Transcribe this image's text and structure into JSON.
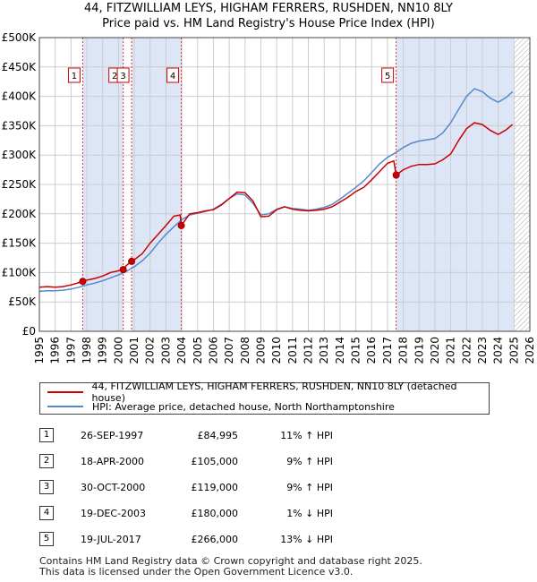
{
  "title_line1": "44, FITZWILLIAM LEYS, HIGHAM FERRERS, RUSHDEN, NN10 8LY",
  "title_line2": "Price paid vs. HM Land Registry's House Price Index (HPI)",
  "chart_data": {
    "type": "line",
    "title": "44, FITZWILLIAM LEYS, HIGHAM FERRERS, RUSHDEN, NN10 8LY — Price paid vs. HM Land Registry's House Price Index (HPI)",
    "xlabel": "",
    "ylabel": "",
    "xlim": [
      1995,
      2026
    ],
    "ylim": [
      0,
      500000
    ],
    "x_ticks": [
      1995,
      1996,
      1997,
      1998,
      1999,
      2000,
      2001,
      2002,
      2003,
      2004,
      2005,
      2006,
      2007,
      2008,
      2009,
      2010,
      2011,
      2012,
      2013,
      2014,
      2015,
      2016,
      2017,
      2018,
      2019,
      2020,
      2021,
      2022,
      2023,
      2024,
      2025,
      2026
    ],
    "y_ticks": [
      {
        "value": 0,
        "label": "£0"
      },
      {
        "value": 50000,
        "label": "£50K"
      },
      {
        "value": 100000,
        "label": "£100K"
      },
      {
        "value": 150000,
        "label": "£150K"
      },
      {
        "value": 200000,
        "label": "£200K"
      },
      {
        "value": 250000,
        "label": "£250K"
      },
      {
        "value": 300000,
        "label": "£300K"
      },
      {
        "value": 350000,
        "label": "£350K"
      },
      {
        "value": 400000,
        "label": "£400K"
      },
      {
        "value": 450000,
        "label": "£450K"
      },
      {
        "value": 500000,
        "label": "£500K"
      }
    ],
    "grid": true,
    "shaded_ranges": [
      [
        1997.74,
        2000.3
      ],
      [
        2000.83,
        2003.97
      ],
      [
        2017.55,
        2025.0
      ]
    ],
    "hatched_range": [
      2025.0,
      2026.0
    ],
    "series": [
      {
        "name": "44, FITZWILLIAM LEYS, HIGHAM FERRERS, RUSHDEN, NN10 8LY (detached house)",
        "color": "#cc0000",
        "points": [
          [
            1995.0,
            75000
          ],
          [
            1995.5,
            76000
          ],
          [
            1996.0,
            75000
          ],
          [
            1996.5,
            76000
          ],
          [
            1997.0,
            79000
          ],
          [
            1997.5,
            83000
          ],
          [
            1997.74,
            84995
          ],
          [
            1998.0,
            87000
          ],
          [
            1998.5,
            90000
          ],
          [
            1999.0,
            94000
          ],
          [
            1999.5,
            100000
          ],
          [
            2000.0,
            103000
          ],
          [
            2000.3,
            105000
          ],
          [
            2000.5,
            112000
          ],
          [
            2000.83,
            119000
          ],
          [
            2001.0,
            122000
          ],
          [
            2001.5,
            132000
          ],
          [
            2002.0,
            150000
          ],
          [
            2002.5,
            165000
          ],
          [
            2003.0,
            180000
          ],
          [
            2003.5,
            196000
          ],
          [
            2003.9,
            198000
          ],
          [
            2003.97,
            180000
          ],
          [
            2004.5,
            200000
          ],
          [
            2005.0,
            202000
          ],
          [
            2005.5,
            205000
          ],
          [
            2006.0,
            207000
          ],
          [
            2006.5,
            215000
          ],
          [
            2007.0,
            226000
          ],
          [
            2007.5,
            237000
          ],
          [
            2008.0,
            236000
          ],
          [
            2008.5,
            222000
          ],
          [
            2009.0,
            195000
          ],
          [
            2009.5,
            196000
          ],
          [
            2010.0,
            207000
          ],
          [
            2010.5,
            212000
          ],
          [
            2011.0,
            208000
          ],
          [
            2011.5,
            206000
          ],
          [
            2012.0,
            205000
          ],
          [
            2012.5,
            206000
          ],
          [
            2013.0,
            208000
          ],
          [
            2013.5,
            212000
          ],
          [
            2014.0,
            220000
          ],
          [
            2014.5,
            228000
          ],
          [
            2015.0,
            238000
          ],
          [
            2015.5,
            245000
          ],
          [
            2016.0,
            258000
          ],
          [
            2016.5,
            272000
          ],
          [
            2017.0,
            286000
          ],
          [
            2017.4,
            290000
          ],
          [
            2017.55,
            266000
          ],
          [
            2018.0,
            275000
          ],
          [
            2018.5,
            281000
          ],
          [
            2019.0,
            284000
          ],
          [
            2019.5,
            284000
          ],
          [
            2020.0,
            285000
          ],
          [
            2020.5,
            292000
          ],
          [
            2021.0,
            302000
          ],
          [
            2021.5,
            325000
          ],
          [
            2022.0,
            345000
          ],
          [
            2022.5,
            355000
          ],
          [
            2023.0,
            352000
          ],
          [
            2023.5,
            342000
          ],
          [
            2024.0,
            335000
          ],
          [
            2024.5,
            343000
          ],
          [
            2024.9,
            352000
          ]
        ]
      },
      {
        "name": "HPI: Average price, detached house, North Northamptonshire",
        "color": "#5588cc",
        "points": [
          [
            1995.0,
            68000
          ],
          [
            1995.5,
            69000
          ],
          [
            1996.0,
            69000
          ],
          [
            1996.5,
            70000
          ],
          [
            1997.0,
            72000
          ],
          [
            1997.5,
            75000
          ],
          [
            1998.0,
            79000
          ],
          [
            1998.5,
            82000
          ],
          [
            1999.0,
            86000
          ],
          [
            1999.5,
            91000
          ],
          [
            2000.0,
            96000
          ],
          [
            2000.5,
            102000
          ],
          [
            2001.0,
            110000
          ],
          [
            2001.5,
            120000
          ],
          [
            2002.0,
            133000
          ],
          [
            2002.5,
            150000
          ],
          [
            2003.0,
            165000
          ],
          [
            2003.5,
            178000
          ],
          [
            2004.0,
            190000
          ],
          [
            2004.5,
            198000
          ],
          [
            2005.0,
            201000
          ],
          [
            2005.5,
            204000
          ],
          [
            2006.0,
            208000
          ],
          [
            2006.5,
            216000
          ],
          [
            2007.0,
            226000
          ],
          [
            2007.5,
            234000
          ],
          [
            2008.0,
            232000
          ],
          [
            2008.5,
            218000
          ],
          [
            2009.0,
            198000
          ],
          [
            2009.5,
            200000
          ],
          [
            2010.0,
            208000
          ],
          [
            2010.5,
            212000
          ],
          [
            2011.0,
            209000
          ],
          [
            2011.5,
            208000
          ],
          [
            2012.0,
            206000
          ],
          [
            2012.5,
            208000
          ],
          [
            2013.0,
            211000
          ],
          [
            2013.5,
            216000
          ],
          [
            2014.0,
            225000
          ],
          [
            2014.5,
            235000
          ],
          [
            2015.0,
            245000
          ],
          [
            2015.5,
            256000
          ],
          [
            2016.0,
            270000
          ],
          [
            2016.5,
            285000
          ],
          [
            2017.0,
            296000
          ],
          [
            2017.5,
            304000
          ],
          [
            2018.0,
            313000
          ],
          [
            2018.5,
            320000
          ],
          [
            2019.0,
            324000
          ],
          [
            2019.5,
            326000
          ],
          [
            2020.0,
            328000
          ],
          [
            2020.5,
            338000
          ],
          [
            2021.0,
            355000
          ],
          [
            2021.5,
            378000
          ],
          [
            2022.0,
            400000
          ],
          [
            2022.5,
            413000
          ],
          [
            2023.0,
            408000
          ],
          [
            2023.5,
            397000
          ],
          [
            2024.0,
            390000
          ],
          [
            2024.5,
            398000
          ],
          [
            2024.9,
            408000
          ]
        ]
      }
    ],
    "sales": [
      {
        "label": "1",
        "x": 1997.74,
        "price": 84995
      },
      {
        "label": "2",
        "x": 2000.3,
        "price": 105000
      },
      {
        "label": "3",
        "x": 2000.83,
        "price": 119000
      },
      {
        "label": "4",
        "x": 2003.97,
        "price": 180000
      },
      {
        "label": "5",
        "x": 2017.55,
        "price": 266000
      }
    ]
  },
  "legend": {
    "property_label": "44, FITZWILLIAM LEYS, HIGHAM FERRERS, RUSHDEN, NN10 8LY (detached house)",
    "hpi_label": "HPI: Average price, detached house, North Northamptonshire"
  },
  "transactions": [
    {
      "num": "1",
      "date": "26-SEP-1997",
      "price": "£84,995",
      "hpi": "11% ↑ HPI"
    },
    {
      "num": "2",
      "date": "18-APR-2000",
      "price": "£105,000",
      "hpi": "9% ↑ HPI"
    },
    {
      "num": "3",
      "date": "30-OCT-2000",
      "price": "£119,000",
      "hpi": "9% ↑ HPI"
    },
    {
      "num": "4",
      "date": "19-DEC-2003",
      "price": "£180,000",
      "hpi": "1% ↓ HPI"
    },
    {
      "num": "5",
      "date": "19-JUL-2017",
      "price": "£266,000",
      "hpi": "13% ↓ HPI"
    }
  ],
  "footer": {
    "line1": "Contains HM Land Registry data © Crown copyright and database right 2025.",
    "line2": "This data is licensed under the Open Government Licence v3.0."
  },
  "colors": {
    "property": "#cc0000",
    "hpi": "#5588cc",
    "shade": "#dde6f7",
    "grid": "#cccccc"
  }
}
